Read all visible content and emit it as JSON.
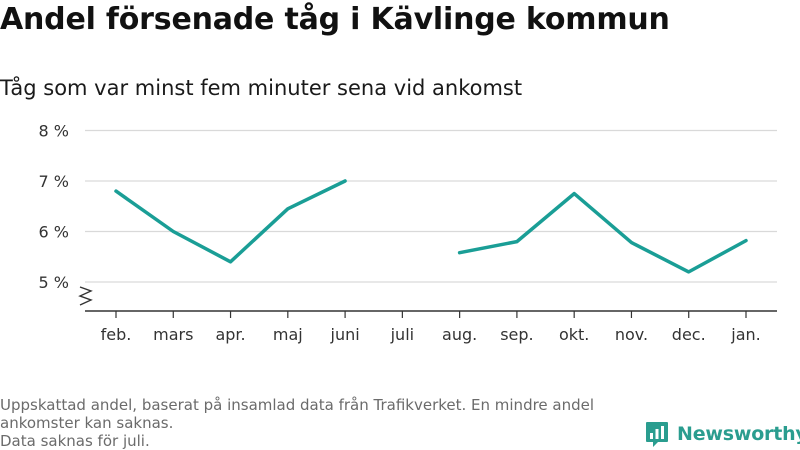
{
  "header": {
    "title": "Andel försenade tåg i Kävlinge kommun",
    "subtitle": "Tåg som var minst fem minuter sena vid ankomst"
  },
  "chart_data": {
    "type": "line",
    "categories": [
      "feb.",
      "mars",
      "apr.",
      "maj",
      "juni",
      "juli",
      "aug.",
      "sep.",
      "okt.",
      "nov.",
      "dec.",
      "jan."
    ],
    "series": [
      {
        "values": [
          6.8,
          6.0,
          5.4,
          6.45,
          7.0,
          null,
          5.58,
          5.8,
          6.75,
          5.78,
          5.2,
          5.82
        ]
      }
    ],
    "y_ticks": [
      5,
      6,
      7,
      8
    ],
    "y_tick_labels": [
      "5 %",
      "6 %",
      "7 %",
      "8 %"
    ],
    "ylim": [
      4.5,
      8.2
    ],
    "y_axis_break": true,
    "grid": true,
    "line_color": "#1a9e96",
    "xlabel": "",
    "ylabel": ""
  },
  "footnote": {
    "line1": "Uppskattad andel, baserat på insamlad data från Trafikverket. En mindre andel ankomster kan saknas.",
    "line2": "Data saknas för juli."
  },
  "brand": {
    "name": "Newsworthy",
    "icon": "newsworthy-logo-icon",
    "color": "#2a9d8f"
  }
}
